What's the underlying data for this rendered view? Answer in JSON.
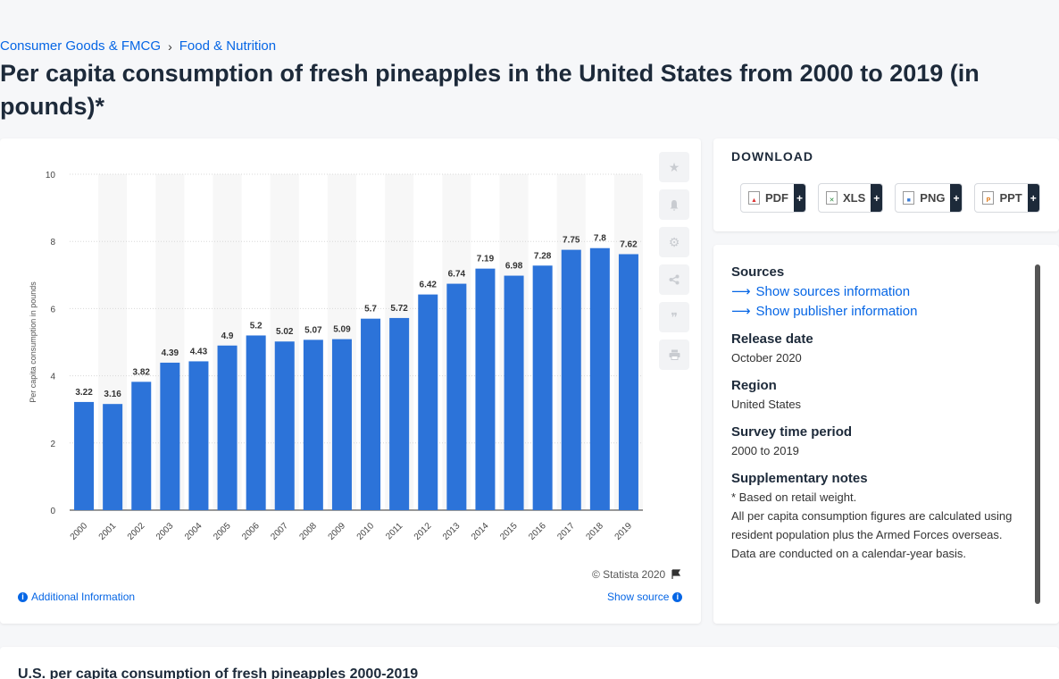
{
  "breadcrumb": {
    "item1": "Consumer Goods & FMCG",
    "item2": "Food & Nutrition",
    "separator": "›"
  },
  "title": "Per capita consumption of fresh pineapples in the United States from 2000 to 2019 (in pounds)*",
  "chart_data": {
    "type": "bar",
    "categories": [
      "2000",
      "2001",
      "2002",
      "2003",
      "2004",
      "2005",
      "2006",
      "2007",
      "2008",
      "2009",
      "2010",
      "2011",
      "2012",
      "2013",
      "2014",
      "2015",
      "2016",
      "2017",
      "2018",
      "2019"
    ],
    "values": [
      3.22,
      3.16,
      3.82,
      4.39,
      4.43,
      4.9,
      5.2,
      5.02,
      5.07,
      5.09,
      5.7,
      5.72,
      6.42,
      6.74,
      7.19,
      6.98,
      7.28,
      7.75,
      7.8,
      7.62
    ],
    "value_labels": [
      "3.22",
      "3.16",
      "3.82",
      "4.39",
      "4.43",
      "4.9",
      "5.2",
      "5.02",
      "5.07",
      "5.09",
      "5.7",
      "5.72",
      "6.42",
      "6.74",
      "7.19",
      "6.98",
      "7.28",
      "7.75",
      "7.8",
      "7.62"
    ],
    "ylabel": "Per capita consumption in pounds",
    "xlabel": "",
    "ylim": [
      0,
      10
    ],
    "yticks": [
      "0",
      "2",
      "4",
      "6",
      "8",
      "10"
    ],
    "bar_color": "#2c73d9",
    "grid": true
  },
  "copyright": "© Statista 2020",
  "additional_info": "Additional Information",
  "show_source": "Show source",
  "download": {
    "title": "DOWNLOAD",
    "pdf": "PDF",
    "xls": "XLS",
    "png": "PNG",
    "ppt": "PPT",
    "plus": "+"
  },
  "info": {
    "sources_label": "Sources",
    "show_sources": "Show sources information",
    "show_publisher": "Show publisher information",
    "release_label": "Release date",
    "release_value": "October 2020",
    "region_label": "Region",
    "region_value": "United States",
    "survey_label": "Survey time period",
    "survey_value": "2000 to 2019",
    "notes_label": "Supplementary notes",
    "note1": "* Based on retail weight.",
    "note2": "All per capita consumption figures are calculated using resident population plus the Armed Forces overseas.",
    "note3": "Data are conducted on a calendar-year basis."
  },
  "bottom_title": "U.S. per capita consumption of fresh pineapples 2000-2019"
}
